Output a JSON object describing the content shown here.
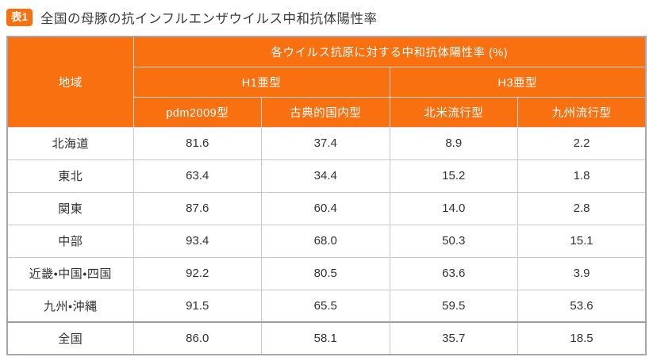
{
  "title": {
    "badge": "表1",
    "text": "全国の母豚の抗インフルエンザウイルス中和抗体陽性率"
  },
  "table": {
    "header": {
      "region_label": "地域",
      "top": "各ウイルス抗原に対する中和抗体陽性率 (%)",
      "groups": [
        {
          "label": "H1亜型"
        },
        {
          "label": "H3亜型"
        }
      ],
      "columns": [
        "pdm2009型",
        "古典的国内型",
        "北米流行型",
        "九州流行型"
      ]
    },
    "rows": [
      {
        "region": "北海道",
        "values": [
          "81.6",
          "37.4",
          "8.9",
          "2.2"
        ]
      },
      {
        "region": "東北",
        "values": [
          "63.4",
          "34.4",
          "15.2",
          "1.8"
        ]
      },
      {
        "region": "関東",
        "values": [
          "87.6",
          "60.4",
          "14.0",
          "2.8"
        ]
      },
      {
        "region": "中部",
        "values": [
          "93.4",
          "68.0",
          "50.3",
          "15.1"
        ]
      },
      {
        "region": "近畿・中国・四国",
        "values": [
          "92.2",
          "80.5",
          "63.6",
          "3.9"
        ]
      },
      {
        "region": "九州・沖縄",
        "values": [
          "91.5",
          "65.5",
          "59.5",
          "53.6"
        ]
      },
      {
        "region": "全国",
        "values": [
          "86.0",
          "58.1",
          "35.7",
          "18.5"
        ],
        "highlight_value_index": 0
      }
    ]
  },
  "colors": {
    "header_orange": "#f8700f",
    "highlight_red": "#e6173c",
    "region_bg": "#efefef",
    "outer_border": "#a7a7af"
  }
}
